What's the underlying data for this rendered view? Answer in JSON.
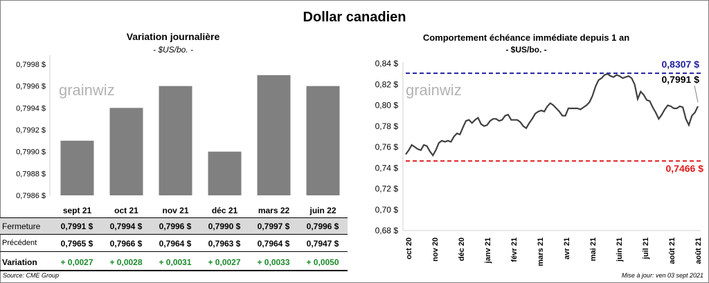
{
  "title": "Dollar canadien",
  "left": {
    "title": "Variation  journalière",
    "subtitle": "- $US/bo. -",
    "watermark": "grainwiz",
    "table": {
      "row_labels": [
        "Fermeture",
        "Précédent",
        "Variation"
      ],
      "fermeture": [
        "0,7991  $",
        "0,7994  $",
        "0,7996  $",
        "0,7990  $",
        "0,7997  $",
        "0,7996  $"
      ],
      "precedent": [
        "0,7965  $",
        "0,7966  $",
        "0,7964  $",
        "0,7963  $",
        "0,7964  $",
        "0,7947  $"
      ],
      "variation": [
        "+ 0,0027",
        "+ 0,0028",
        "+ 0,0031",
        "+ 0,0027",
        "+ 0,0033",
        "+ 0,0050"
      ]
    }
  },
  "right": {
    "title": "Comportement échéance immédiate depuis 1 an",
    "subtitle": "- $US/bo. -",
    "watermark": "grainwiz",
    "high_label": "0,8307  $",
    "last_label": "0,7991  $",
    "low_label": "0,7466  $"
  },
  "footer": {
    "source": "Source: CME Group",
    "updated": "Mise à jour: ven 03 sept 2021"
  },
  "colors": {
    "bar": "#808080",
    "line": "#404040",
    "high": "#1f1f9e",
    "low": "#e01b1b",
    "positive": "#1a8a2a"
  },
  "chart_data": [
    {
      "type": "bar",
      "title": "Variation  journalière",
      "categories": [
        "sept 21",
        "oct 21",
        "nov 21",
        "déc 21",
        "mars 22",
        "juin 22"
      ],
      "values": [
        0.7991,
        0.7994,
        0.7996,
        0.799,
        0.7997,
        0.7996
      ],
      "ylim": [
        0.7986,
        0.7998
      ],
      "yticks": [
        0.7986,
        0.7988,
        0.799,
        0.7992,
        0.7994,
        0.7996,
        0.7998
      ],
      "ytick_labels": [
        "0,7986 $",
        "0,7988 $",
        "0,7990 $",
        "0,7992 $",
        "0,7994 $",
        "0,7996 $",
        "0,7998 $"
      ],
      "grid": false
    },
    {
      "type": "line",
      "title": "Comportement échéance immédiate depuis 1 an",
      "x_labels": [
        "oct 20",
        "nov 20",
        "déc 20",
        "janv 21",
        "févr 21",
        "mars 21",
        "avr 21",
        "mai 21",
        "juin 21",
        "juil 21",
        "août 21",
        "août 21"
      ],
      "ylim": [
        0.68,
        0.84
      ],
      "yticks": [
        0.68,
        0.7,
        0.72,
        0.74,
        0.76,
        0.78,
        0.8,
        0.82,
        0.84
      ],
      "ytick_labels": [
        "0,68 $",
        "0,70 $",
        "0,72 $",
        "0,74 $",
        "0,76 $",
        "0,78 $",
        "0,80 $",
        "0,82 $",
        "0,84 $"
      ],
      "values": [
        0.753,
        0.757,
        0.762,
        0.76,
        0.758,
        0.757,
        0.762,
        0.761,
        0.756,
        0.752,
        0.757,
        0.764,
        0.766,
        0.765,
        0.766,
        0.765,
        0.77,
        0.773,
        0.772,
        0.779,
        0.785,
        0.786,
        0.783,
        0.786,
        0.788,
        0.782,
        0.78,
        0.781,
        0.785,
        0.787,
        0.787,
        0.785,
        0.786,
        0.79,
        0.791,
        0.786,
        0.786,
        0.786,
        0.784,
        0.78,
        0.778,
        0.783,
        0.787,
        0.792,
        0.794,
        0.795,
        0.794,
        0.799,
        0.802,
        0.8,
        0.797,
        0.794,
        0.79,
        0.79,
        0.797,
        0.797,
        0.797,
        0.797,
        0.796,
        0.798,
        0.8,
        0.803,
        0.809,
        0.818,
        0.824,
        0.826,
        0.829,
        0.83,
        0.828,
        0.827,
        0.829,
        0.828,
        0.826,
        0.827,
        0.828,
        0.826,
        0.82,
        0.806,
        0.813,
        0.81,
        0.805,
        0.804,
        0.798,
        0.793,
        0.787,
        0.791,
        0.796,
        0.8,
        0.799,
        0.797,
        0.797,
        0.799,
        0.798,
        0.787,
        0.781,
        0.79,
        0.793,
        0.799
      ],
      "reference_lines": [
        {
          "label": "0,8307  $",
          "value": 0.8307,
          "style": "dashed",
          "color": "#1f1f9e"
        },
        {
          "label": "0,7466  $",
          "value": 0.7466,
          "style": "dashed",
          "color": "#e01b1b"
        }
      ],
      "last_value": 0.7991,
      "grid": false
    }
  ]
}
